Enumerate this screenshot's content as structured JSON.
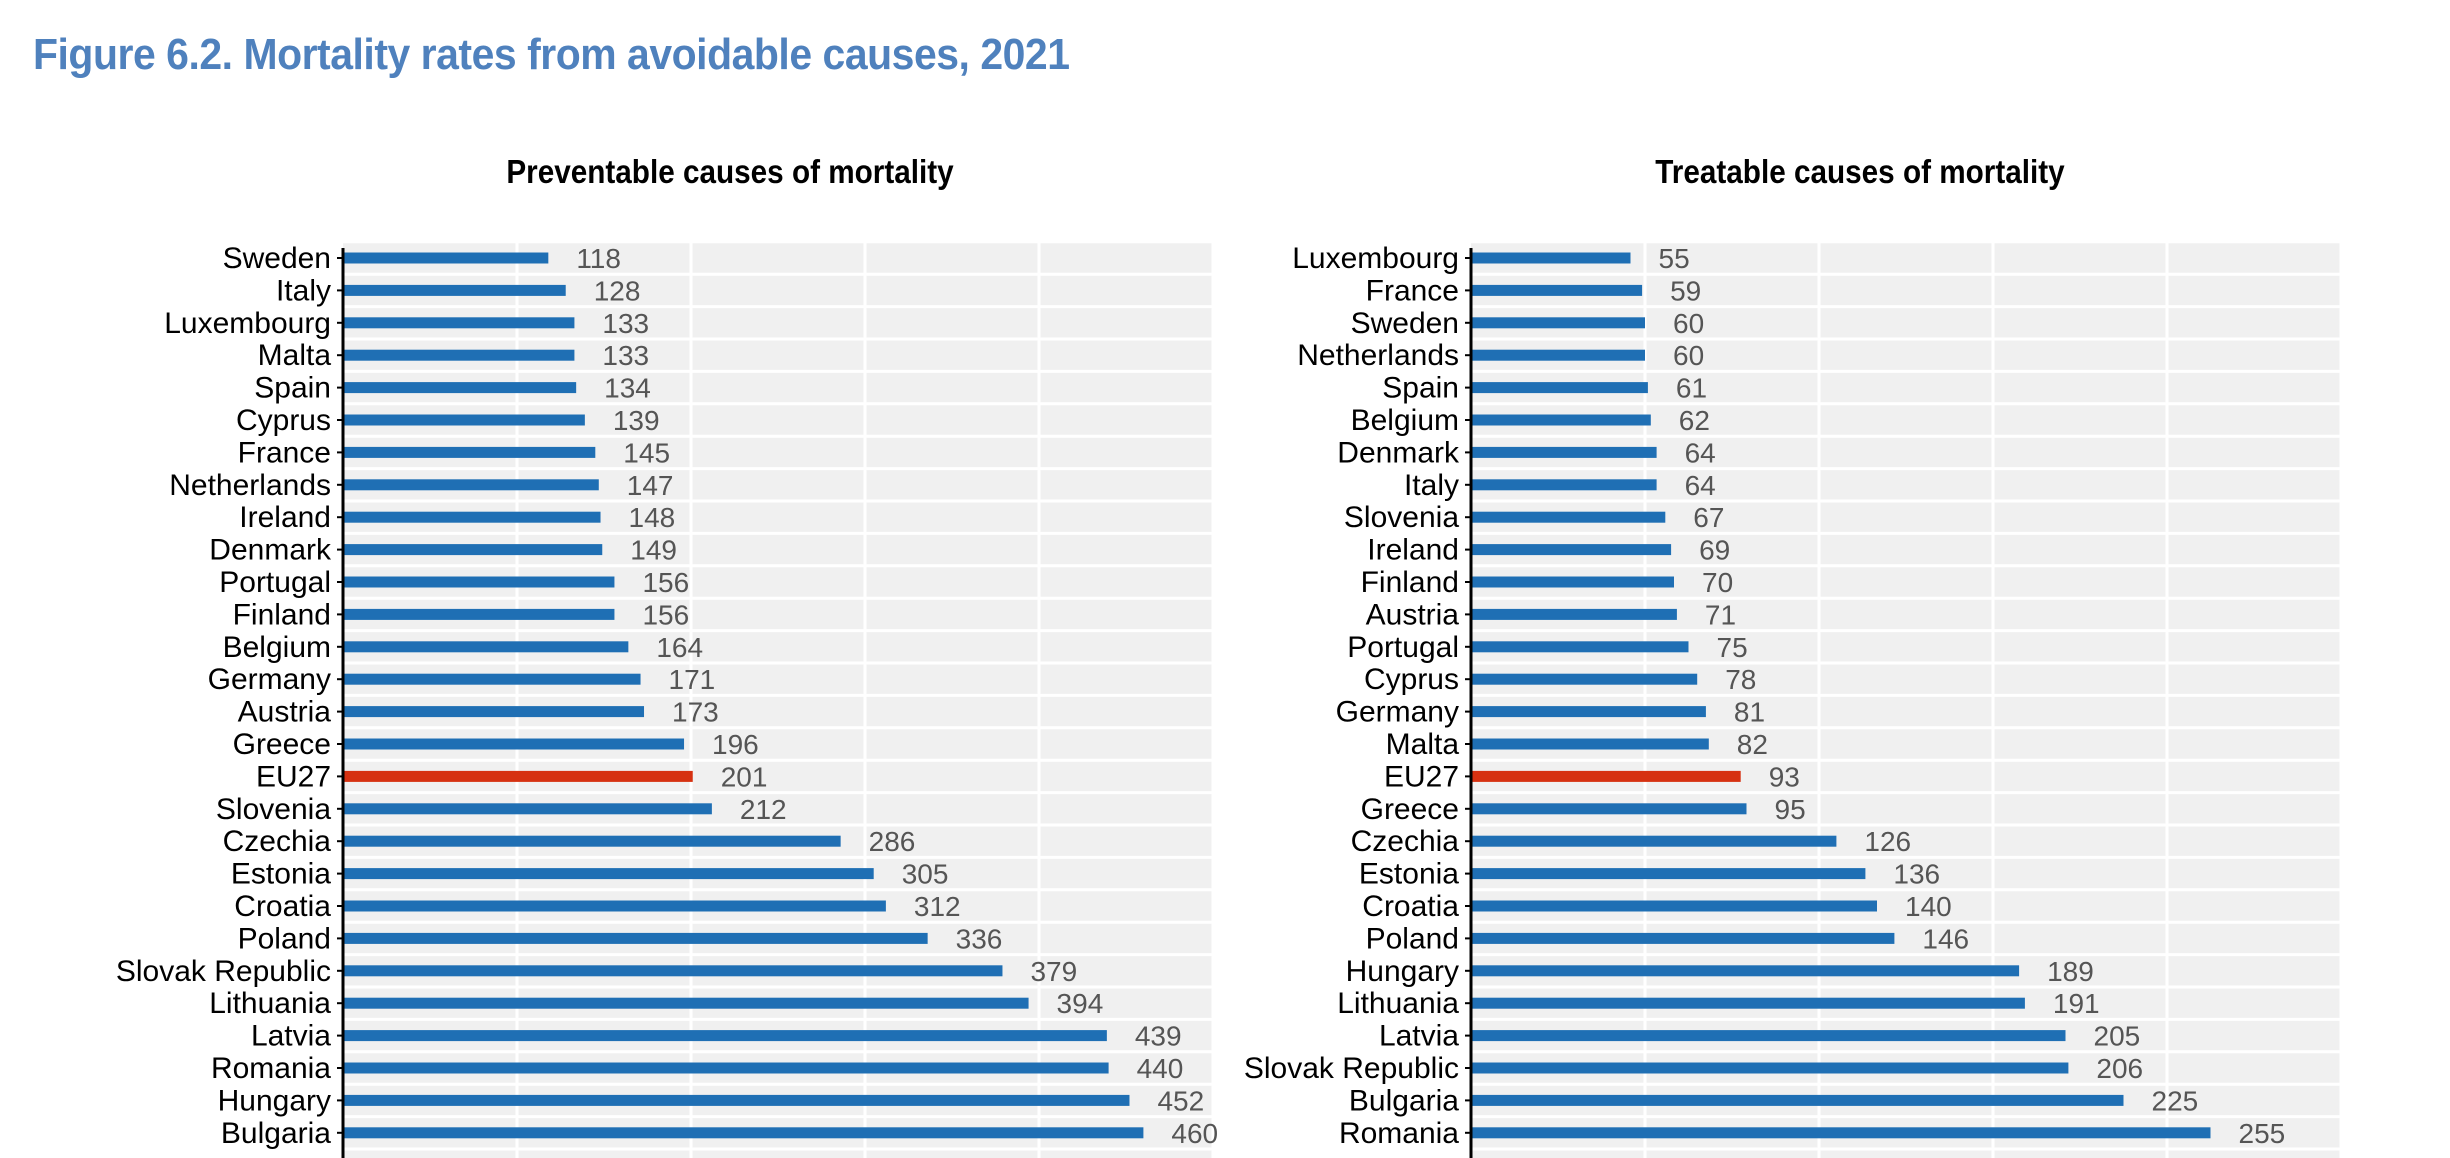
{
  "figure": {
    "title": "Figure 6.2. Mortality rates from avoidable causes, 2021"
  },
  "colors": {
    "bar": "#1f6fb4",
    "highlight": "#d63111",
    "plot_bg": "#f0f0f0",
    "grid": "#ffffff",
    "axis": "#000000"
  },
  "chart_data": [
    {
      "type": "bar",
      "orientation": "horizontal",
      "title": "Preventable causes of mortality",
      "xlabel": "",
      "ylabel": "",
      "xlim": [
        0,
        500
      ],
      "grid": true,
      "highlight_category": "EU27",
      "categories": [
        "Sweden",
        "Italy",
        "Luxembourg",
        "Malta",
        "Spain",
        "Cyprus",
        "France",
        "Netherlands",
        "Ireland",
        "Denmark",
        "Portugal",
        "Finland",
        "Belgium",
        "Germany",
        "Austria",
        "Greece",
        "EU27",
        "Slovenia",
        "Czechia",
        "Estonia",
        "Croatia",
        "Poland",
        "Slovak Republic",
        "Lithuania",
        "Latvia",
        "Romania",
        "Hungary",
        "Bulgaria"
      ],
      "values": [
        118,
        128,
        133,
        133,
        134,
        139,
        145,
        147,
        148,
        149,
        156,
        156,
        164,
        171,
        173,
        196,
        201,
        212,
        286,
        305,
        312,
        336,
        379,
        394,
        439,
        440,
        452,
        460
      ]
    },
    {
      "type": "bar",
      "orientation": "horizontal",
      "title": "Treatable causes of mortality",
      "xlabel": "",
      "ylabel": "",
      "xlim": [
        0,
        300
      ],
      "grid": true,
      "highlight_category": "EU27",
      "categories": [
        "Luxembourg",
        "France",
        "Sweden",
        "Netherlands",
        "Spain",
        "Belgium",
        "Denmark",
        "Italy",
        "Slovenia",
        "Ireland",
        "Finland",
        "Austria",
        "Portugal",
        "Cyprus",
        "Germany",
        "Malta",
        "EU27",
        "Greece",
        "Czechia",
        "Estonia",
        "Croatia",
        "Poland",
        "Hungary",
        "Lithuania",
        "Latvia",
        "Slovak Republic",
        "Bulgaria",
        "Romania"
      ],
      "values": [
        55,
        59,
        60,
        60,
        61,
        62,
        64,
        64,
        67,
        69,
        70,
        71,
        75,
        78,
        81,
        82,
        93,
        95,
        126,
        136,
        140,
        146,
        189,
        191,
        205,
        206,
        225,
        255
      ]
    }
  ]
}
